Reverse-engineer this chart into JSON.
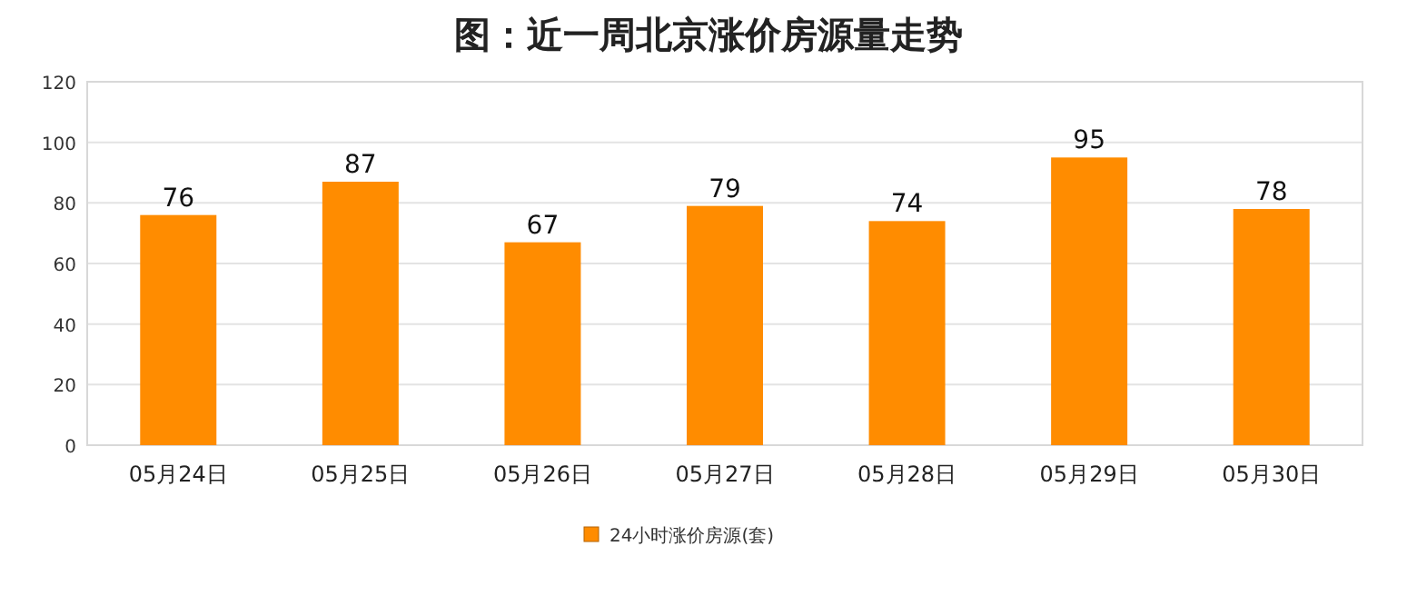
{
  "chart_data": {
    "type": "bar",
    "title": "图：近一周北京涨价房源量走势",
    "categories": [
      "05月24日",
      "05月25日",
      "05月26日",
      "05月27日",
      "05月28日",
      "05月29日",
      "05月30日"
    ],
    "series": [
      {
        "name": "24小时涨价房源(套)",
        "color": "#ff8c00",
        "values": [
          76,
          87,
          67,
          79,
          74,
          95,
          78
        ]
      }
    ],
    "ylim": [
      0,
      120
    ],
    "yticks": [
      0,
      20,
      40,
      60,
      80,
      100,
      120
    ],
    "grid": "y",
    "legend": "bottom",
    "data_labels": true
  }
}
